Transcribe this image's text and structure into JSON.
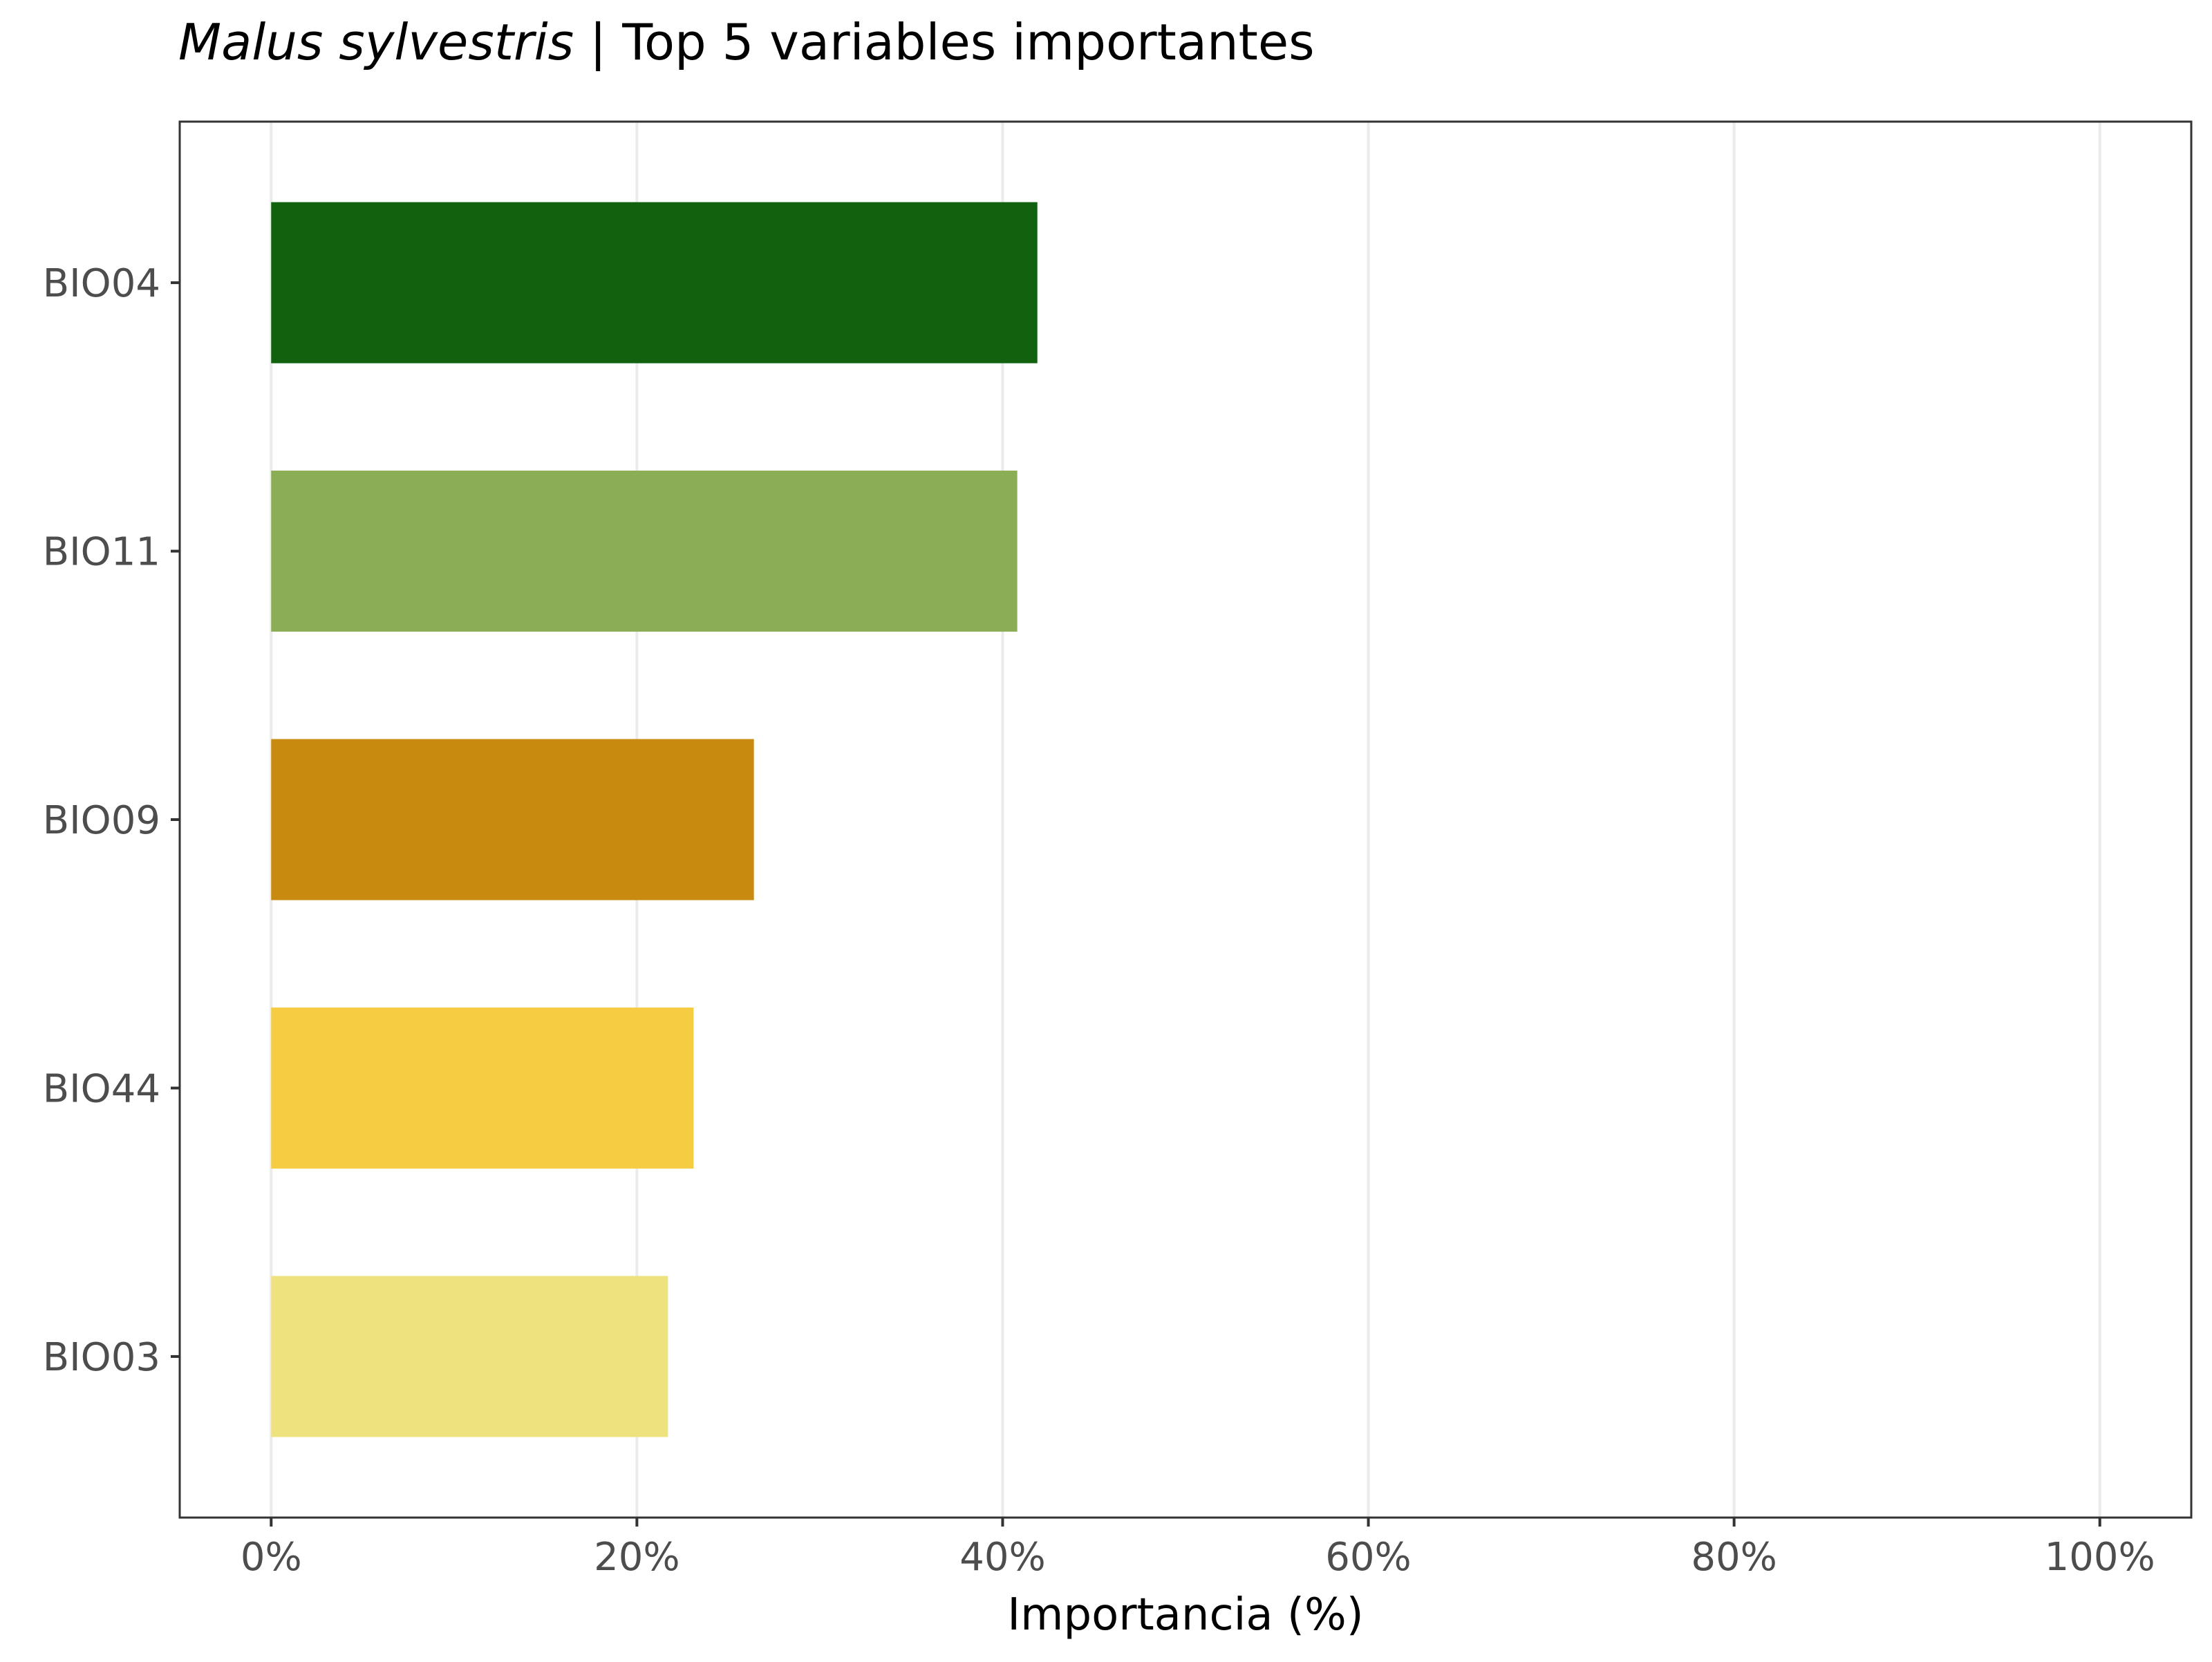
{
  "chart_data": {
    "type": "bar",
    "orientation": "horizontal",
    "title_species": "Malus sylvestris",
    "title_rest": " | Top 5 variables importantes",
    "xlabel": "Importancia (%)",
    "ylabel": "",
    "categories": [
      "BIO04",
      "BIO11",
      "BIO09",
      "BIO44",
      "BIO03"
    ],
    "values": [
      41.9,
      40.8,
      26.4,
      23.1,
      21.7
    ],
    "colors": [
      "#11610f",
      "#8aad55",
      "#c98b0f",
      "#f6cc42",
      "#ede27e"
    ],
    "xlim": [
      -5,
      105
    ],
    "x_ticks": [
      0,
      20,
      40,
      60,
      80,
      100
    ],
    "x_tick_labels": [
      "0%",
      "20%",
      "40%",
      "60%",
      "80%",
      "100%"
    ],
    "grid": true,
    "legend": "none"
  }
}
